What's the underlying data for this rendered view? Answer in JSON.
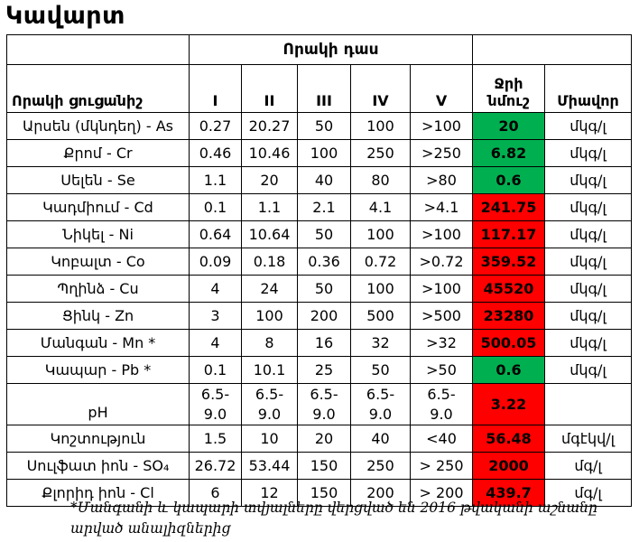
{
  "title": "Կավարտ",
  "colors": {
    "good": "#00B050",
    "bad": "#FF0000",
    "border": "#000000"
  },
  "table": {
    "group_header": "Որակի դաս",
    "header": {
      "indicator": "Որակի ցուցանիշ",
      "classes": [
        "I",
        "II",
        "III",
        "IV",
        "V"
      ],
      "sample": "Ջրի նմուշ",
      "unit": "Միավոր"
    },
    "rows": [
      {
        "indicator": "Արսեն (մկնդեղ) - As",
        "classes": [
          "0.27",
          "20.27",
          "50",
          "100",
          ">100"
        ],
        "sample": "20",
        "status": "good",
        "unit": "մկգ/լ"
      },
      {
        "indicator": "Քրոմ - Cr",
        "classes": [
          "0.46",
          "10.46",
          "100",
          "250",
          ">250"
        ],
        "sample": "6.82",
        "status": "good",
        "unit": "մկգ/լ"
      },
      {
        "indicator": "Սելեն - Se",
        "classes": [
          "1.1",
          "20",
          "40",
          "80",
          ">80"
        ],
        "sample": "0.6",
        "status": "good",
        "unit": "մկգ/լ"
      },
      {
        "indicator": "Կադմիում - Cd",
        "classes": [
          "0.1",
          "1.1",
          "2.1",
          "4.1",
          ">4.1"
        ],
        "sample": "241.75",
        "status": "bad",
        "unit": "մկգ/լ"
      },
      {
        "indicator": "Նիկել - Ni",
        "classes": [
          "0.64",
          "10.64",
          "50",
          "100",
          ">100"
        ],
        "sample": "117.17",
        "status": "bad",
        "unit": "մկգ/լ"
      },
      {
        "indicator": "Կոբալտ - Co",
        "classes": [
          "0.09",
          "0.18",
          "0.36",
          "0.72",
          ">0.72"
        ],
        "sample": "359.52",
        "status": "bad",
        "unit": "մկգ/լ"
      },
      {
        "indicator": "Պղինձ - Cu",
        "classes": [
          "4",
          "24",
          "50",
          "100",
          ">100"
        ],
        "sample": "45520",
        "status": "bad",
        "unit": "մկգ/լ"
      },
      {
        "indicator": "Ցինկ - Zn",
        "classes": [
          "3",
          "100",
          "200",
          "500",
          ">500"
        ],
        "sample": "23280",
        "status": "bad",
        "unit": "մկգ/լ"
      },
      {
        "indicator": "Մանգան - Mn *",
        "classes": [
          "4",
          "8",
          "16",
          "32",
          ">32"
        ],
        "sample": "500.05",
        "status": "bad",
        "unit": "մկգ/լ"
      },
      {
        "indicator": "Կապար - Pb *",
        "classes": [
          "0.1",
          "10.1",
          "25",
          "50",
          ">50"
        ],
        "sample": "0.6",
        "status": "good",
        "unit": "մկգ/լ"
      },
      {
        "indicator": "pH",
        "classes": [
          "6.5-\n9.0",
          "6.5-\n9.0",
          "6.5-\n9.0",
          "6.5-\n9.0",
          "6.5-\n9.0"
        ],
        "sample": "3.22",
        "status": "bad",
        "unit": ""
      },
      {
        "indicator": "Կոշտություն",
        "classes": [
          "1.5",
          "10",
          "20",
          "40",
          "<40"
        ],
        "sample": "56.48",
        "status": "bad",
        "unit": "մգէկվ/լ"
      },
      {
        "indicator": "Սուլֆատ իոն - SO₄",
        "classes": [
          "26.72",
          "53.44",
          "150",
          "250",
          "> 250"
        ],
        "sample": "2000",
        "status": "bad",
        "unit": "մգ/լ"
      },
      {
        "indicator": "Քլորիդ իոն - Cl",
        "classes": [
          "6",
          "12",
          "150",
          "200",
          "> 200"
        ],
        "sample": "439.7",
        "status": "bad",
        "unit": "մգ/լ"
      }
    ]
  },
  "footnote": "*Մանգանի և կապարի տվյալները վերցված են 2016 թվականի աշնանը\nարված անալիզներից"
}
